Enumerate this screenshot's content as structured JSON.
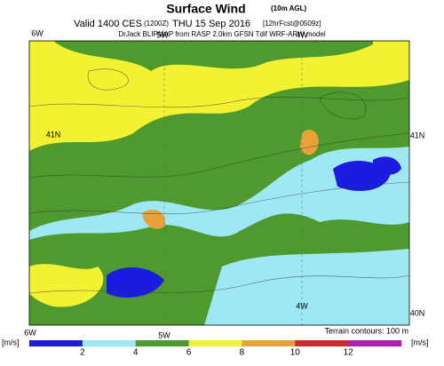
{
  "header": {
    "title": "Surface Wind",
    "title_note": "(10m AGL)",
    "valid": "Valid 1400 CES",
    "utc": "(1200Z)",
    "date": "THU 15 Sep 2016",
    "forecast": "[12hrFcst@0509z]",
    "source": "DrJack BLIPMAP from RASP 2.0km GFSN Tdif WRF-ARW model"
  },
  "map_labels": {
    "top": [
      "6W",
      "5W",
      "4W"
    ],
    "left": "41N",
    "right_top": "41N",
    "inner": "4W",
    "right_bottom": "40N",
    "bottom": [
      "6W",
      "5W"
    ],
    "terrain": "Terrain contours: 100 m"
  },
  "colorbar": {
    "unit_left": "[m/s]",
    "unit_right": "[m/s]",
    "ticks": [
      2,
      4,
      6,
      8,
      10,
      12
    ],
    "colors": [
      "#1c1ce0",
      "#9ee8f4",
      "#4f9a2e",
      "#f2f232",
      "#e8a23c",
      "#d02a2a",
      "#b020b0"
    ]
  }
}
